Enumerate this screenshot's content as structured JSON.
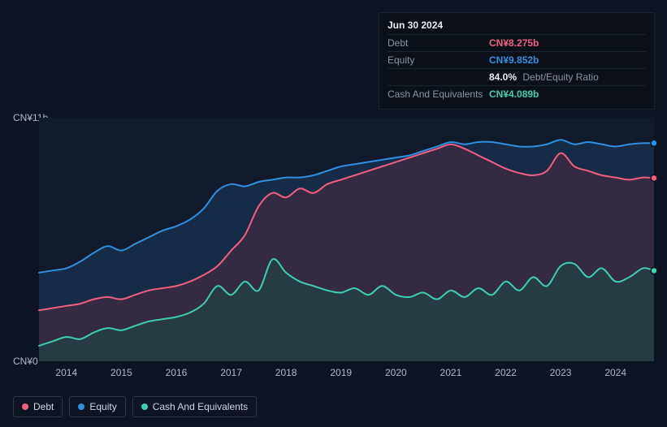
{
  "info": {
    "date": "Jun 30 2024",
    "rows": [
      {
        "label": "Debt",
        "value": "CN¥8.275b",
        "color": "#f25f7f"
      },
      {
        "label": "Equity",
        "value": "CN¥9.852b",
        "color": "#2f8fe0"
      },
      {
        "label": "",
        "value": "84.0%",
        "extra": "Debt/Equity Ratio",
        "color": "#e8ecf2"
      },
      {
        "label": "Cash And Equivalents",
        "value": "CN¥4.089b",
        "color": "#3fcfb0"
      }
    ]
  },
  "chart": {
    "type": "area",
    "background_color": "#111a2b",
    "page_bg": "#0d1421",
    "y_axis": {
      "min": 0,
      "max": 11,
      "labels": [
        {
          "v": 11,
          "text": "CN¥11b"
        },
        {
          "v": 0,
          "text": "CN¥0"
        }
      ],
      "label_color": "#b0b8c4",
      "label_fontsize": 12
    },
    "x_axis": {
      "min": 2013.5,
      "max": 2024.7,
      "ticks": [
        2014,
        2015,
        2016,
        2017,
        2018,
        2019,
        2020,
        2021,
        2022,
        2023,
        2024
      ],
      "label_color": "#b0b8c4",
      "label_fontsize": 12
    },
    "series": [
      {
        "name": "Equity",
        "stroke": "#2f8fe0",
        "fill": "#1a3a5c",
        "fill_opacity": 0.55,
        "line_width": 2,
        "end_dot_color": "#2f8fe0",
        "data": [
          [
            2013.5,
            4.0
          ],
          [
            2013.75,
            4.1
          ],
          [
            2014.0,
            4.2
          ],
          [
            2014.25,
            4.5
          ],
          [
            2014.5,
            4.9
          ],
          [
            2014.75,
            5.2
          ],
          [
            2015.0,
            5.0
          ],
          [
            2015.25,
            5.3
          ],
          [
            2015.5,
            5.6
          ],
          [
            2015.75,
            5.9
          ],
          [
            2016.0,
            6.1
          ],
          [
            2016.25,
            6.4
          ],
          [
            2016.5,
            6.9
          ],
          [
            2016.75,
            7.7
          ],
          [
            2017.0,
            8.0
          ],
          [
            2017.25,
            7.9
          ],
          [
            2017.5,
            8.1
          ],
          [
            2017.75,
            8.2
          ],
          [
            2018.0,
            8.3
          ],
          [
            2018.25,
            8.3
          ],
          [
            2018.5,
            8.4
          ],
          [
            2018.75,
            8.6
          ],
          [
            2019.0,
            8.8
          ],
          [
            2019.25,
            8.9
          ],
          [
            2019.5,
            9.0
          ],
          [
            2019.75,
            9.1
          ],
          [
            2020.0,
            9.2
          ],
          [
            2020.25,
            9.3
          ],
          [
            2020.5,
            9.5
          ],
          [
            2020.75,
            9.7
          ],
          [
            2021.0,
            9.9
          ],
          [
            2021.25,
            9.8
          ],
          [
            2021.5,
            9.9
          ],
          [
            2021.75,
            9.9
          ],
          [
            2022.0,
            9.8
          ],
          [
            2022.25,
            9.7
          ],
          [
            2022.5,
            9.7
          ],
          [
            2022.75,
            9.8
          ],
          [
            2023.0,
            10.0
          ],
          [
            2023.25,
            9.8
          ],
          [
            2023.5,
            9.9
          ],
          [
            2023.75,
            9.8
          ],
          [
            2024.0,
            9.7
          ],
          [
            2024.25,
            9.8
          ],
          [
            2024.5,
            9.85
          ],
          [
            2024.7,
            9.852
          ]
        ]
      },
      {
        "name": "Debt",
        "stroke": "#f25f7f",
        "fill": "#5a2a3e",
        "fill_opacity": 0.45,
        "line_width": 2,
        "end_dot_color": "#f25f7f",
        "data": [
          [
            2013.5,
            2.3
          ],
          [
            2013.75,
            2.4
          ],
          [
            2014.0,
            2.5
          ],
          [
            2014.25,
            2.6
          ],
          [
            2014.5,
            2.8
          ],
          [
            2014.75,
            2.9
          ],
          [
            2015.0,
            2.8
          ],
          [
            2015.25,
            3.0
          ],
          [
            2015.5,
            3.2
          ],
          [
            2015.75,
            3.3
          ],
          [
            2016.0,
            3.4
          ],
          [
            2016.25,
            3.6
          ],
          [
            2016.5,
            3.9
          ],
          [
            2016.75,
            4.3
          ],
          [
            2017.0,
            5.0
          ],
          [
            2017.25,
            5.7
          ],
          [
            2017.5,
            7.0
          ],
          [
            2017.75,
            7.6
          ],
          [
            2018.0,
            7.4
          ],
          [
            2018.25,
            7.8
          ],
          [
            2018.5,
            7.6
          ],
          [
            2018.75,
            8.0
          ],
          [
            2019.0,
            8.2
          ],
          [
            2019.25,
            8.4
          ],
          [
            2019.5,
            8.6
          ],
          [
            2019.75,
            8.8
          ],
          [
            2020.0,
            9.0
          ],
          [
            2020.25,
            9.2
          ],
          [
            2020.5,
            9.4
          ],
          [
            2020.75,
            9.6
          ],
          [
            2021.0,
            9.8
          ],
          [
            2021.25,
            9.6
          ],
          [
            2021.5,
            9.3
          ],
          [
            2021.75,
            9.0
          ],
          [
            2022.0,
            8.7
          ],
          [
            2022.25,
            8.5
          ],
          [
            2022.5,
            8.4
          ],
          [
            2022.75,
            8.6
          ],
          [
            2023.0,
            9.4
          ],
          [
            2023.25,
            8.8
          ],
          [
            2023.5,
            8.6
          ],
          [
            2023.75,
            8.4
          ],
          [
            2024.0,
            8.3
          ],
          [
            2024.25,
            8.2
          ],
          [
            2024.5,
            8.3
          ],
          [
            2024.7,
            8.275
          ]
        ]
      },
      {
        "name": "Cash And Equivalents",
        "stroke": "#3fcfb0",
        "fill": "#1e4a44",
        "fill_opacity": 0.55,
        "line_width": 2,
        "end_dot_color": "#3fcfb0",
        "data": [
          [
            2013.5,
            0.7
          ],
          [
            2013.75,
            0.9
          ],
          [
            2014.0,
            1.1
          ],
          [
            2014.25,
            1.0
          ],
          [
            2014.5,
            1.3
          ],
          [
            2014.75,
            1.5
          ],
          [
            2015.0,
            1.4
          ],
          [
            2015.25,
            1.6
          ],
          [
            2015.5,
            1.8
          ],
          [
            2015.75,
            1.9
          ],
          [
            2016.0,
            2.0
          ],
          [
            2016.25,
            2.2
          ],
          [
            2016.5,
            2.6
          ],
          [
            2016.75,
            3.4
          ],
          [
            2017.0,
            3.0
          ],
          [
            2017.25,
            3.6
          ],
          [
            2017.5,
            3.2
          ],
          [
            2017.75,
            4.6
          ],
          [
            2018.0,
            4.0
          ],
          [
            2018.25,
            3.6
          ],
          [
            2018.5,
            3.4
          ],
          [
            2018.75,
            3.2
          ],
          [
            2019.0,
            3.1
          ],
          [
            2019.25,
            3.3
          ],
          [
            2019.5,
            3.0
          ],
          [
            2019.75,
            3.4
          ],
          [
            2020.0,
            3.0
          ],
          [
            2020.25,
            2.9
          ],
          [
            2020.5,
            3.1
          ],
          [
            2020.75,
            2.8
          ],
          [
            2021.0,
            3.2
          ],
          [
            2021.25,
            2.9
          ],
          [
            2021.5,
            3.3
          ],
          [
            2021.75,
            3.0
          ],
          [
            2022.0,
            3.6
          ],
          [
            2022.25,
            3.2
          ],
          [
            2022.5,
            3.8
          ],
          [
            2022.75,
            3.4
          ],
          [
            2023.0,
            4.3
          ],
          [
            2023.25,
            4.4
          ],
          [
            2023.5,
            3.8
          ],
          [
            2023.75,
            4.2
          ],
          [
            2024.0,
            3.6
          ],
          [
            2024.25,
            3.8
          ],
          [
            2024.5,
            4.2
          ],
          [
            2024.7,
            4.089
          ]
        ]
      }
    ],
    "legend": [
      {
        "label": "Debt",
        "color": "#f25f7f"
      },
      {
        "label": "Equity",
        "color": "#2f8fe0"
      },
      {
        "label": "Cash And Equivalents",
        "color": "#3fcfb0"
      }
    ]
  }
}
